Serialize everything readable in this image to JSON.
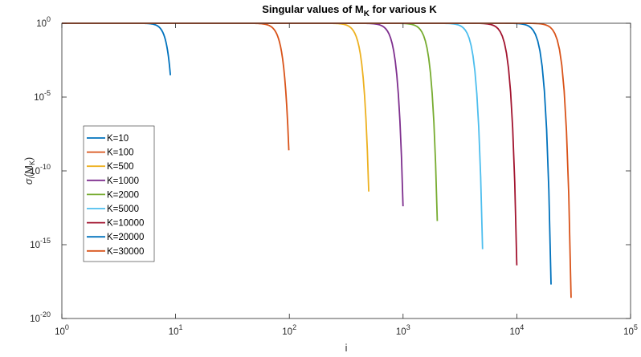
{
  "chart_data": {
    "type": "line",
    "title": "Singular values of M_K for various K",
    "title_main": "Singular values of M",
    "title_sub": "K",
    "title_tail": " for various K",
    "xlabel": "i",
    "ylabel": "σ_i(M_K)",
    "xscale": "log",
    "yscale": "log",
    "xlim": [
      1,
      100000
    ],
    "ylim": [
      1e-20,
      1
    ],
    "x_ticks": [
      {
        "value": 1,
        "base": "10",
        "exp": "0"
      },
      {
        "value": 10,
        "base": "10",
        "exp": "1"
      },
      {
        "value": 100,
        "base": "10",
        "exp": "2"
      },
      {
        "value": 1000,
        "base": "10",
        "exp": "3"
      },
      {
        "value": 10000,
        "base": "10",
        "exp": "4"
      },
      {
        "value": 100000,
        "base": "10",
        "exp": "5"
      }
    ],
    "y_ticks": [
      {
        "value": 1,
        "base": "10",
        "exp": "0"
      },
      {
        "value": 1e-05,
        "base": "10",
        "exp": "-5"
      },
      {
        "value": 1e-10,
        "base": "10",
        "exp": "-10"
      },
      {
        "value": 1e-15,
        "base": "10",
        "exp": "-15"
      },
      {
        "value": 1e-20,
        "base": "10",
        "exp": "-20"
      }
    ],
    "grid": false,
    "legend_position": "left",
    "series": [
      {
        "name": "K=10",
        "K": 10,
        "color": "#0072BD",
        "min_y": 0.0003
      },
      {
        "name": "K=100",
        "K": 100,
        "color": "#D95319",
        "min_y": 2.5e-09
      },
      {
        "name": "K=500",
        "K": 500,
        "color": "#EDB120",
        "min_y": 4e-12
      },
      {
        "name": "K=1000",
        "K": 1000,
        "color": "#7E2F8E",
        "min_y": 4e-13
      },
      {
        "name": "K=2000",
        "K": 2000,
        "color": "#77AC30",
        "min_y": 4e-14
      },
      {
        "name": "K=5000",
        "K": 5000,
        "color": "#4DBEEE",
        "min_y": 5e-16
      },
      {
        "name": "K=10000",
        "K": 10000,
        "color": "#A2142F",
        "min_y": 4e-17
      },
      {
        "name": "K=20000",
        "K": 20000,
        "color": "#0072BD",
        "min_y": 2e-18
      },
      {
        "name": "K=30000",
        "K": 30000,
        "color": "#D95319",
        "min_y": 2.5e-19
      }
    ]
  }
}
